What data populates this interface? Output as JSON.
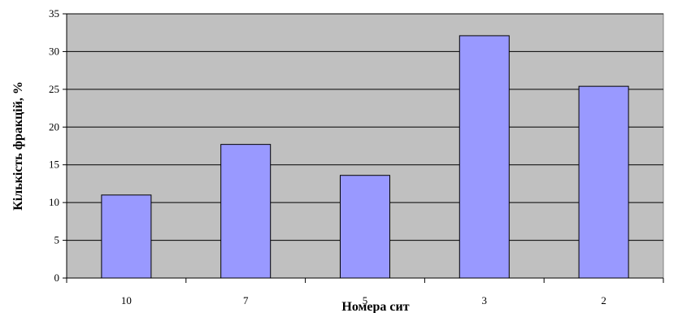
{
  "chart_data": {
    "type": "bar",
    "categories": [
      "10",
      "7",
      "5",
      "3",
      "2"
    ],
    "values": [
      11,
      17.7,
      13.6,
      32.1,
      25.4
    ],
    "title": "",
    "xlabel": "Номера сит",
    "ylabel": "Кількість фракцій, %",
    "ylim": [
      0,
      35
    ],
    "yticks": [
      0,
      5,
      10,
      15,
      20,
      25,
      30,
      35
    ],
    "grid": true,
    "legend": "none",
    "colors": {
      "bar_fill": "#9999ff",
      "bar_stroke": "#000000",
      "plot_background": "#c0c0c0",
      "gridline": "#000000"
    }
  }
}
